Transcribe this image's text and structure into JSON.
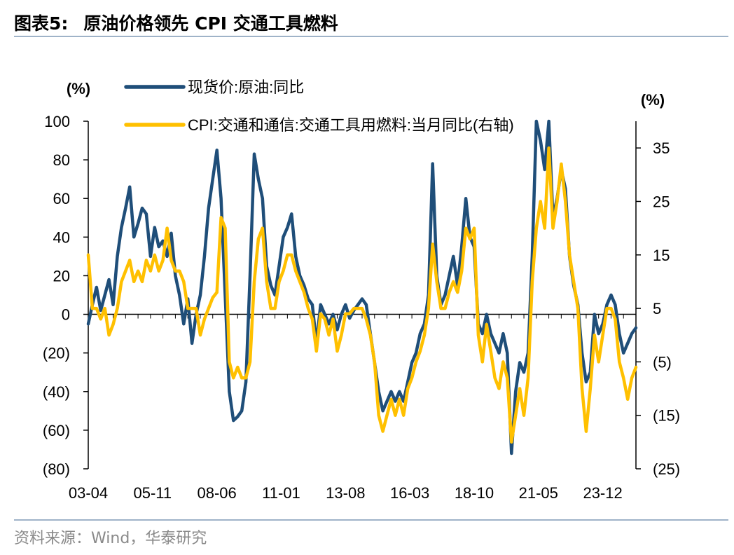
{
  "header": {
    "figure_label": "图表5:",
    "title": "原油价格领先 CPI 交通工具燃料"
  },
  "footer": {
    "source": "资料来源：Wind，华泰研究"
  },
  "chart_data": {
    "type": "line",
    "left_axis": {
      "unit_label": "(%)",
      "range": [
        -80,
        100
      ],
      "ticks": [
        100,
        80,
        60,
        40,
        20,
        0,
        -20,
        -40,
        -60,
        -80
      ],
      "tick_labels": [
        "100",
        "80",
        "60",
        "40",
        "20",
        "0",
        "(20)",
        "(40)",
        "(60)",
        "(80)"
      ]
    },
    "right_axis": {
      "unit_label": "(%)",
      "range": [
        -25,
        40
      ],
      "ticks": [
        35,
        25,
        15,
        5,
        -5,
        -15,
        -25
      ],
      "tick_labels": [
        "35",
        "25",
        "15",
        "5",
        "(5)",
        "(15)",
        "(25)"
      ]
    },
    "x_axis": {
      "tick_labels": [
        "03-04",
        "05-11",
        "08-06",
        "11-01",
        "13-08",
        "16-03",
        "18-10",
        "21-05",
        "23-12"
      ],
      "tick_dates": [
        "2003-04",
        "2005-11",
        "2008-06",
        "2011-01",
        "2013-08",
        "2016-03",
        "2018-10",
        "2021-05",
        "2023-12"
      ],
      "range": [
        "2003-04",
        "2025-04"
      ]
    },
    "legend": {
      "placement": "top-left"
    },
    "grid": false,
    "series": [
      {
        "name": "现货价:原油:同比",
        "axis": "left",
        "color": "#1f4e79",
        "points": [
          [
            "2003-04",
            -5
          ],
          [
            "2003-06",
            5
          ],
          [
            "2003-08",
            14
          ],
          [
            "2003-10",
            2
          ],
          [
            "2003-12",
            10
          ],
          [
            "2004-02",
            18
          ],
          [
            "2004-04",
            5
          ],
          [
            "2004-06",
            30
          ],
          [
            "2004-08",
            45
          ],
          [
            "2004-10",
            55
          ],
          [
            "2004-12",
            66
          ],
          [
            "2005-02",
            40
          ],
          [
            "2005-04",
            47
          ],
          [
            "2005-06",
            55
          ],
          [
            "2005-08",
            52
          ],
          [
            "2005-10",
            30
          ],
          [
            "2005-12",
            45
          ],
          [
            "2006-02",
            35
          ],
          [
            "2006-04",
            38
          ],
          [
            "2006-06",
            30
          ],
          [
            "2006-08",
            42
          ],
          [
            "2006-10",
            20
          ],
          [
            "2006-12",
            10
          ],
          [
            "2007-02",
            -5
          ],
          [
            "2007-04",
            8
          ],
          [
            "2007-06",
            -15
          ],
          [
            "2007-08",
            0
          ],
          [
            "2007-10",
            10
          ],
          [
            "2007-12",
            30
          ],
          [
            "2008-02",
            55
          ],
          [
            "2008-04",
            70
          ],
          [
            "2008-06",
            85
          ],
          [
            "2008-08",
            60
          ],
          [
            "2008-10",
            10
          ],
          [
            "2008-12",
            -40
          ],
          [
            "2009-02",
            -55
          ],
          [
            "2009-04",
            -53
          ],
          [
            "2009-06",
            -50
          ],
          [
            "2009-08",
            -35
          ],
          [
            "2009-10",
            20
          ],
          [
            "2009-12",
            83
          ],
          [
            "2010-02",
            70
          ],
          [
            "2010-04",
            60
          ],
          [
            "2010-06",
            25
          ],
          [
            "2010-08",
            15
          ],
          [
            "2010-10",
            10
          ],
          [
            "2010-12",
            25
          ],
          [
            "2011-02",
            40
          ],
          [
            "2011-04",
            45
          ],
          [
            "2011-06",
            52
          ],
          [
            "2011-08",
            30
          ],
          [
            "2011-10",
            20
          ],
          [
            "2011-12",
            15
          ],
          [
            "2012-02",
            8
          ],
          [
            "2012-04",
            5
          ],
          [
            "2012-06",
            -15
          ],
          [
            "2012-08",
            5
          ],
          [
            "2012-10",
            0
          ],
          [
            "2012-12",
            -5
          ],
          [
            "2013-02",
            0
          ],
          [
            "2013-04",
            -8
          ],
          [
            "2013-06",
            0
          ],
          [
            "2013-08",
            5
          ],
          [
            "2013-10",
            -2
          ],
          [
            "2013-12",
            2
          ],
          [
            "2014-02",
            5
          ],
          [
            "2014-04",
            8
          ],
          [
            "2014-06",
            5
          ],
          [
            "2014-08",
            -10
          ],
          [
            "2014-10",
            -25
          ],
          [
            "2014-12",
            -40
          ],
          [
            "2015-02",
            -50
          ],
          [
            "2015-04",
            -45
          ],
          [
            "2015-06",
            -40
          ],
          [
            "2015-08",
            -45
          ],
          [
            "2015-10",
            -40
          ],
          [
            "2015-12",
            -45
          ],
          [
            "2016-02",
            -35
          ],
          [
            "2016-04",
            -25
          ],
          [
            "2016-06",
            -20
          ],
          [
            "2016-08",
            -10
          ],
          [
            "2016-10",
            -5
          ],
          [
            "2016-12",
            10
          ],
          [
            "2017-02",
            78
          ],
          [
            "2017-04",
            20
          ],
          [
            "2017-06",
            5
          ],
          [
            "2017-08",
            10
          ],
          [
            "2017-10",
            20
          ],
          [
            "2017-12",
            30
          ],
          [
            "2018-02",
            15
          ],
          [
            "2018-04",
            35
          ],
          [
            "2018-06",
            60
          ],
          [
            "2018-08",
            40
          ],
          [
            "2018-10",
            35
          ],
          [
            "2018-12",
            -5
          ],
          [
            "2019-02",
            -10
          ],
          [
            "2019-04",
            0
          ],
          [
            "2019-06",
            -10
          ],
          [
            "2019-08",
            -15
          ],
          [
            "2019-10",
            -20
          ],
          [
            "2019-12",
            -10
          ],
          [
            "2020-02",
            -20
          ],
          [
            "2020-04",
            -72
          ],
          [
            "2020-06",
            -40
          ],
          [
            "2020-08",
            -25
          ],
          [
            "2020-10",
            -30
          ],
          [
            "2020-12",
            -20
          ],
          [
            "2021-02",
            30
          ],
          [
            "2021-04",
            100
          ],
          [
            "2021-06",
            90
          ],
          [
            "2021-08",
            75
          ],
          [
            "2021-10",
            100
          ],
          [
            "2021-12",
            50
          ],
          [
            "2022-02",
            60
          ],
          [
            "2022-04",
            75
          ],
          [
            "2022-06",
            65
          ],
          [
            "2022-08",
            30
          ],
          [
            "2022-10",
            15
          ],
          [
            "2022-12",
            5
          ],
          [
            "2023-02",
            -20
          ],
          [
            "2023-04",
            -35
          ],
          [
            "2023-06",
            -30
          ],
          [
            "2023-08",
            0
          ],
          [
            "2023-10",
            -10
          ],
          [
            "2023-12",
            -5
          ],
          [
            "2024-02",
            5
          ],
          [
            "2024-04",
            10
          ],
          [
            "2024-06",
            5
          ],
          [
            "2024-08",
            -10
          ],
          [
            "2024-10",
            -20
          ],
          [
            "2024-12",
            -15
          ],
          [
            "2025-02",
            -10
          ],
          [
            "2025-04",
            -7
          ]
        ]
      },
      {
        "name": "CPI:交通和通信:交通工具用燃料:当月同比(右轴)",
        "axis": "right",
        "color": "#ffc000",
        "points": [
          [
            "2003-04",
            15
          ],
          [
            "2003-06",
            5
          ],
          [
            "2003-08",
            5
          ],
          [
            "2003-10",
            3
          ],
          [
            "2003-12",
            5
          ],
          [
            "2004-02",
            0
          ],
          [
            "2004-04",
            2
          ],
          [
            "2004-06",
            5
          ],
          [
            "2004-08",
            10
          ],
          [
            "2004-10",
            12
          ],
          [
            "2004-12",
            14
          ],
          [
            "2005-02",
            10
          ],
          [
            "2005-04",
            12
          ],
          [
            "2005-06",
            10
          ],
          [
            "2005-08",
            14
          ],
          [
            "2005-10",
            12
          ],
          [
            "2005-12",
            15
          ],
          [
            "2006-02",
            12
          ],
          [
            "2006-04",
            14
          ],
          [
            "2006-06",
            20
          ],
          [
            "2006-08",
            14
          ],
          [
            "2006-10",
            12
          ],
          [
            "2006-12",
            12
          ],
          [
            "2007-02",
            10
          ],
          [
            "2007-04",
            5
          ],
          [
            "2007-06",
            5
          ],
          [
            "2007-08",
            5
          ],
          [
            "2007-10",
            0
          ],
          [
            "2007-12",
            3
          ],
          [
            "2008-02",
            5
          ],
          [
            "2008-04",
            7
          ],
          [
            "2008-06",
            8
          ],
          [
            "2008-08",
            22
          ],
          [
            "2008-10",
            20
          ],
          [
            "2008-12",
            -5
          ],
          [
            "2009-02",
            -8
          ],
          [
            "2009-04",
            -6
          ],
          [
            "2009-06",
            -8
          ],
          [
            "2009-08",
            -8
          ],
          [
            "2009-10",
            -5
          ],
          [
            "2009-12",
            10
          ],
          [
            "2010-02",
            18
          ],
          [
            "2010-04",
            20
          ],
          [
            "2010-06",
            10
          ],
          [
            "2010-08",
            5
          ],
          [
            "2010-10",
            5
          ],
          [
            "2010-12",
            10
          ],
          [
            "2011-02",
            12
          ],
          [
            "2011-04",
            15
          ],
          [
            "2011-06",
            15
          ],
          [
            "2011-08",
            12
          ],
          [
            "2011-10",
            10
          ],
          [
            "2011-12",
            8
          ],
          [
            "2012-02",
            5
          ],
          [
            "2012-04",
            3
          ],
          [
            "2012-06",
            -3
          ],
          [
            "2012-08",
            4
          ],
          [
            "2012-10",
            3
          ],
          [
            "2012-12",
            0
          ],
          [
            "2013-02",
            3
          ],
          [
            "2013-04",
            -3
          ],
          [
            "2013-06",
            0
          ],
          [
            "2013-08",
            4
          ],
          [
            "2013-10",
            4
          ],
          [
            "2013-12",
            5
          ],
          [
            "2014-02",
            5
          ],
          [
            "2014-04",
            5
          ],
          [
            "2014-06",
            3
          ],
          [
            "2014-08",
            0
          ],
          [
            "2014-10",
            -5
          ],
          [
            "2014-12",
            -15
          ],
          [
            "2015-02",
            -18
          ],
          [
            "2015-04",
            -15
          ],
          [
            "2015-06",
            -12
          ],
          [
            "2015-08",
            -15
          ],
          [
            "2015-10",
            -12
          ],
          [
            "2015-12",
            -15
          ],
          [
            "2016-02",
            -10
          ],
          [
            "2016-04",
            -8
          ],
          [
            "2016-06",
            -5
          ],
          [
            "2016-08",
            -3
          ],
          [
            "2016-10",
            0
          ],
          [
            "2016-12",
            5
          ],
          [
            "2017-02",
            17
          ],
          [
            "2017-04",
            10
          ],
          [
            "2017-06",
            5
          ],
          [
            "2017-08",
            5
          ],
          [
            "2017-10",
            8
          ],
          [
            "2017-12",
            10
          ],
          [
            "2018-02",
            8
          ],
          [
            "2018-04",
            12
          ],
          [
            "2018-06",
            20
          ],
          [
            "2018-08",
            18
          ],
          [
            "2018-10",
            20
          ],
          [
            "2018-12",
            0
          ],
          [
            "2019-02",
            -5
          ],
          [
            "2019-04",
            2
          ],
          [
            "2019-06",
            -3
          ],
          [
            "2019-08",
            -8
          ],
          [
            "2019-10",
            -10
          ],
          [
            "2019-12",
            -5
          ],
          [
            "2020-02",
            -8
          ],
          [
            "2020-04",
            -20
          ],
          [
            "2020-06",
            -15
          ],
          [
            "2020-08",
            -10
          ],
          [
            "2020-10",
            -15
          ],
          [
            "2020-12",
            -8
          ],
          [
            "2021-02",
            10
          ],
          [
            "2021-04",
            20
          ],
          [
            "2021-06",
            25
          ],
          [
            "2021-08",
            20
          ],
          [
            "2021-10",
            35
          ],
          [
            "2021-12",
            20
          ],
          [
            "2022-02",
            25
          ],
          [
            "2022-04",
            32
          ],
          [
            "2022-06",
            25
          ],
          [
            "2022-08",
            15
          ],
          [
            "2022-10",
            10
          ],
          [
            "2022-12",
            5
          ],
          [
            "2023-02",
            -10
          ],
          [
            "2023-04",
            -18
          ],
          [
            "2023-06",
            -10
          ],
          [
            "2023-08",
            0
          ],
          [
            "2023-10",
            -5
          ],
          [
            "2023-12",
            0
          ],
          [
            "2024-02",
            5
          ],
          [
            "2024-04",
            5
          ],
          [
            "2024-06",
            3
          ],
          [
            "2024-08",
            -5
          ],
          [
            "2024-10",
            -8
          ],
          [
            "2024-12",
            -12
          ],
          [
            "2025-02",
            -8
          ],
          [
            "2025-04",
            -6
          ]
        ]
      }
    ]
  }
}
